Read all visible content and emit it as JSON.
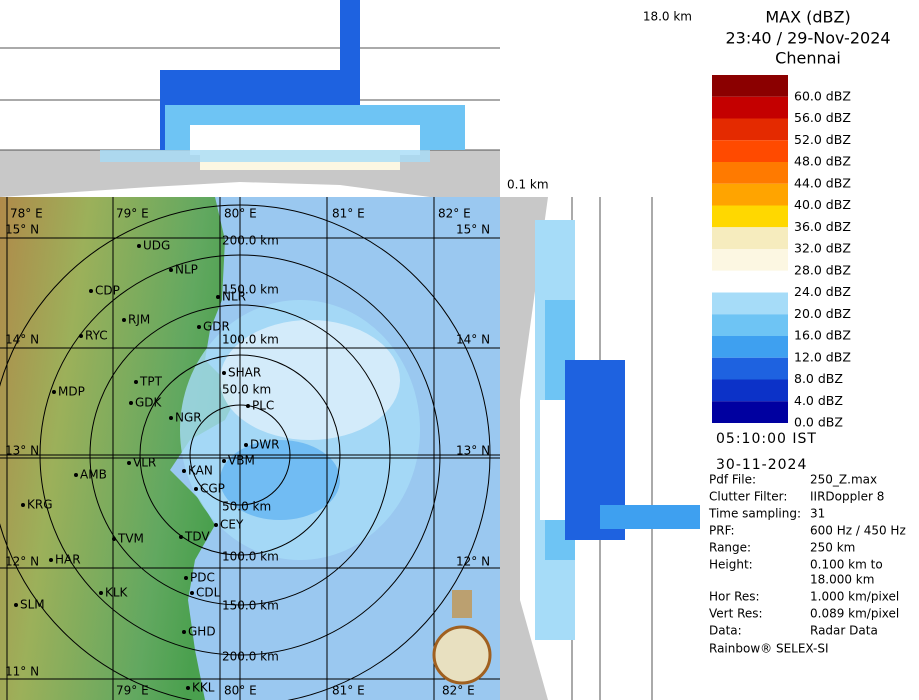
{
  "header": {
    "product": "MAX (dBZ)",
    "datetime": "23:40 / 29-Nov-2024",
    "station": "Chennai"
  },
  "height_labels": {
    "top": "18.0 km",
    "bottom": "0.1 km"
  },
  "legend": {
    "levels": [
      {
        "label": "60.0 dBZ",
        "color": "#8b0000"
      },
      {
        "label": "56.0 dBZ",
        "color": "#c40000"
      },
      {
        "label": "52.0 dBZ",
        "color": "#e42a00"
      },
      {
        "label": "48.0 dBZ",
        "color": "#ff4a00"
      },
      {
        "label": "44.0 dBZ",
        "color": "#ff7a00"
      },
      {
        "label": "40.0 dBZ",
        "color": "#ffa400"
      },
      {
        "label": "36.0 dBZ",
        "color": "#ffd800"
      },
      {
        "label": "32.0 dBZ",
        "color": "#f6ecbe"
      },
      {
        "label": "28.0 dBZ",
        "color": "#fcf7e2"
      },
      {
        "label": "24.0 dBZ",
        "color": "#ffffff"
      },
      {
        "label": "20.0 dBZ",
        "color": "#a6dcf8"
      },
      {
        "label": "16.0 dBZ",
        "color": "#6ec4f4"
      },
      {
        "label": "12.0 dBZ",
        "color": "#3ea0f0"
      },
      {
        "label": "8.0 dBZ",
        "color": "#1e62e0"
      },
      {
        "label": "4.0 dBZ",
        "color": "#0c32c8"
      },
      {
        "label": "0.0 dBZ",
        "color": "#0000a0"
      }
    ]
  },
  "time": "05:10:00 IST",
  "date": "30-11-2024",
  "info": [
    {
      "key": "Pdf File:",
      "value": "250_Z.max"
    },
    {
      "key": "Clutter Filter:",
      "value": "IIRDoppler 8"
    },
    {
      "key": "Time sampling:",
      "value": "31"
    },
    {
      "key": "PRF:",
      "value": "600 Hz / 450 Hz"
    },
    {
      "key": "Range:",
      "value": "250 km"
    },
    {
      "key": "Height:",
      "value": "0.100 km to",
      "more": "18.000 km"
    },
    {
      "key": "Hor Res:",
      "value": "1.000 km/pixel"
    },
    {
      "key": "Vert Res:",
      "value": "0.089 km/pixel"
    },
    {
      "key": "Data:",
      "value": "Radar Data"
    }
  ],
  "footer": "Rainbow® SELEX-SI",
  "map": {
    "lon_top": [
      "78° E",
      "79° E",
      "80° E",
      "81° E",
      "82° E"
    ],
    "lon_bottom": [
      "79° E",
      "80° E",
      "81° E",
      "82° E"
    ],
    "lat_left": [
      "15° N",
      "14° N",
      "13° N",
      "12° N",
      "11° N"
    ],
    "lat_right": [
      "15° N",
      "14° N",
      "13° N",
      "12° N"
    ],
    "range_labels": [
      "200.0 km",
      "150.0 km",
      "100.0 km",
      "50.0 km",
      "50.0 km",
      "100.0 km",
      "150.0 km",
      "200.0 km"
    ],
    "places": [
      "UDG",
      "NLP",
      "CDP",
      "NLR",
      "RJM",
      "GDR",
      "RYC",
      "TPT",
      "SHAR",
      "MDP",
      "GDK",
      "NGR",
      "PLC",
      "DWR",
      "AMB",
      "VLR",
      "KAN",
      "VBM",
      "CGP",
      "KRG",
      "CEY",
      "TVM",
      "TDV",
      "HAR",
      "PDC",
      "CDL",
      "KLK",
      "SLM",
      "GHD",
      "KKL"
    ]
  }
}
